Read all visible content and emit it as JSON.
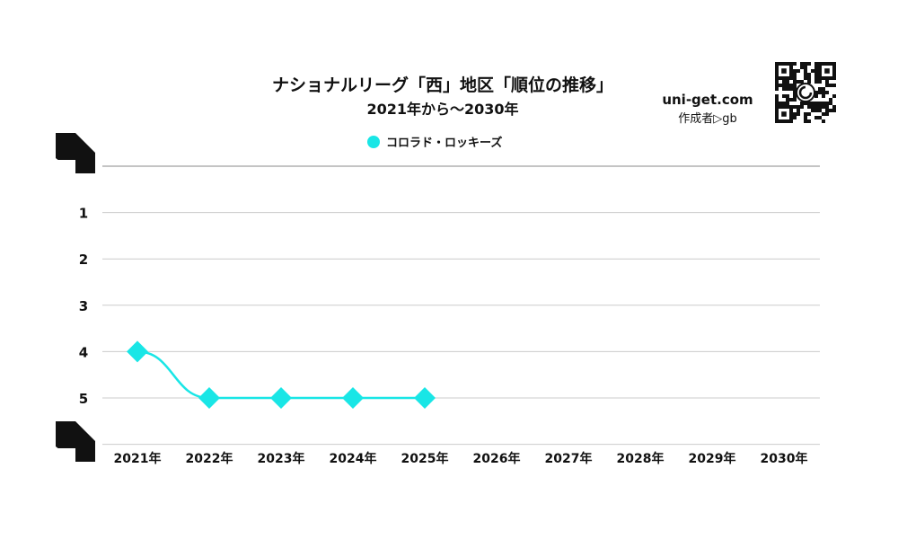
{
  "site": {
    "name": "uni-get.com",
    "author": "作成者▷gb"
  },
  "colors": {
    "series": "#19e6e6",
    "grid": "#cccccc",
    "top_rule": "#888888"
  },
  "chart_data": {
    "type": "line",
    "title": "ナショナルリーグ「西」地区「順位の推移」",
    "subtitle": "2021年から～2030年",
    "x": [
      "2021年",
      "2022年",
      "2023年",
      "2024年",
      "2025年",
      "2026年",
      "2027年",
      "2028年",
      "2029年",
      "2030年"
    ],
    "y_ticks": [
      "1",
      "2",
      "3",
      "4",
      "5"
    ],
    "ylim": [
      0,
      6
    ],
    "y_inverted": true,
    "grid": true,
    "legend_position": "top-center",
    "series": [
      {
        "name": "コロラド・ロッキーズ",
        "values": [
          4,
          5,
          5,
          5,
          5,
          null,
          null,
          null,
          null,
          null
        ]
      }
    ]
  }
}
